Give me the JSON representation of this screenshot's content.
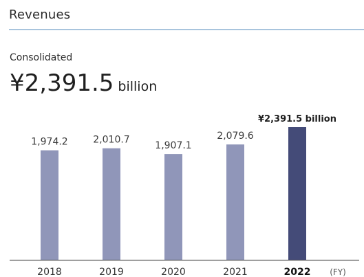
{
  "header": {
    "title": "Revenues",
    "subtitle": "Consolidated",
    "headline_value": "¥2,391.5",
    "headline_unit": "billion"
  },
  "chart_data": {
    "type": "bar",
    "categories": [
      "2018",
      "2019",
      "2020",
      "2021",
      "2022"
    ],
    "values": [
      1974.2,
      2010.7,
      1907.1,
      2079.6,
      2391.5
    ],
    "value_labels": [
      "1,974.2",
      "2,010.7",
      "1,907.1",
      "2,079.6",
      "¥2,391.5 billion"
    ],
    "highlight_index": 4,
    "x_unit_label": "(FY)",
    "ylim": [
      0,
      2600
    ],
    "grid": false,
    "colors": {
      "bar": "#9096b9",
      "highlight": "#444b78",
      "axis": "#555555"
    }
  }
}
